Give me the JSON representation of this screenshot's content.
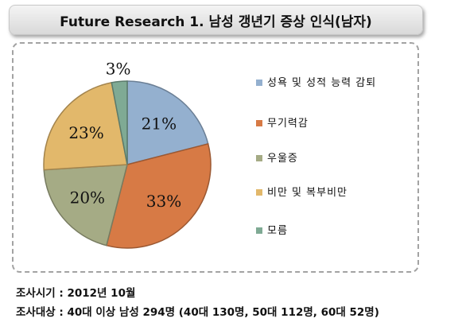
{
  "title": "Future Research 1. 남성 갱년기 증상 인식(남자)",
  "chart_data": {
    "type": "pie",
    "slices": [
      {
        "label": "성욕 및 성적 능력 감퇴",
        "value": 21,
        "value_label": "21%",
        "color": "#94b0cf"
      },
      {
        "label": "무기력감",
        "value": 33,
        "value_label": "33%",
        "color": "#d77a45"
      },
      {
        "label": "우울증",
        "value": 20,
        "value_label": "20%",
        "color": "#a5ab85"
      },
      {
        "label": "비만 및 복부비만",
        "value": 23,
        "value_label": "23%",
        "color": "#e2b86b"
      },
      {
        "label": "모름",
        "value": 3,
        "value_label": "3%",
        "color": "#7faa94"
      }
    ],
    "legend_position": "right"
  },
  "footer": {
    "line1": "조사시기 : 2012년 10월",
    "line2": "조사대상 : 40대 이상 남성 294명 (40대 130명, 50대 112명, 60대 52명)"
  }
}
